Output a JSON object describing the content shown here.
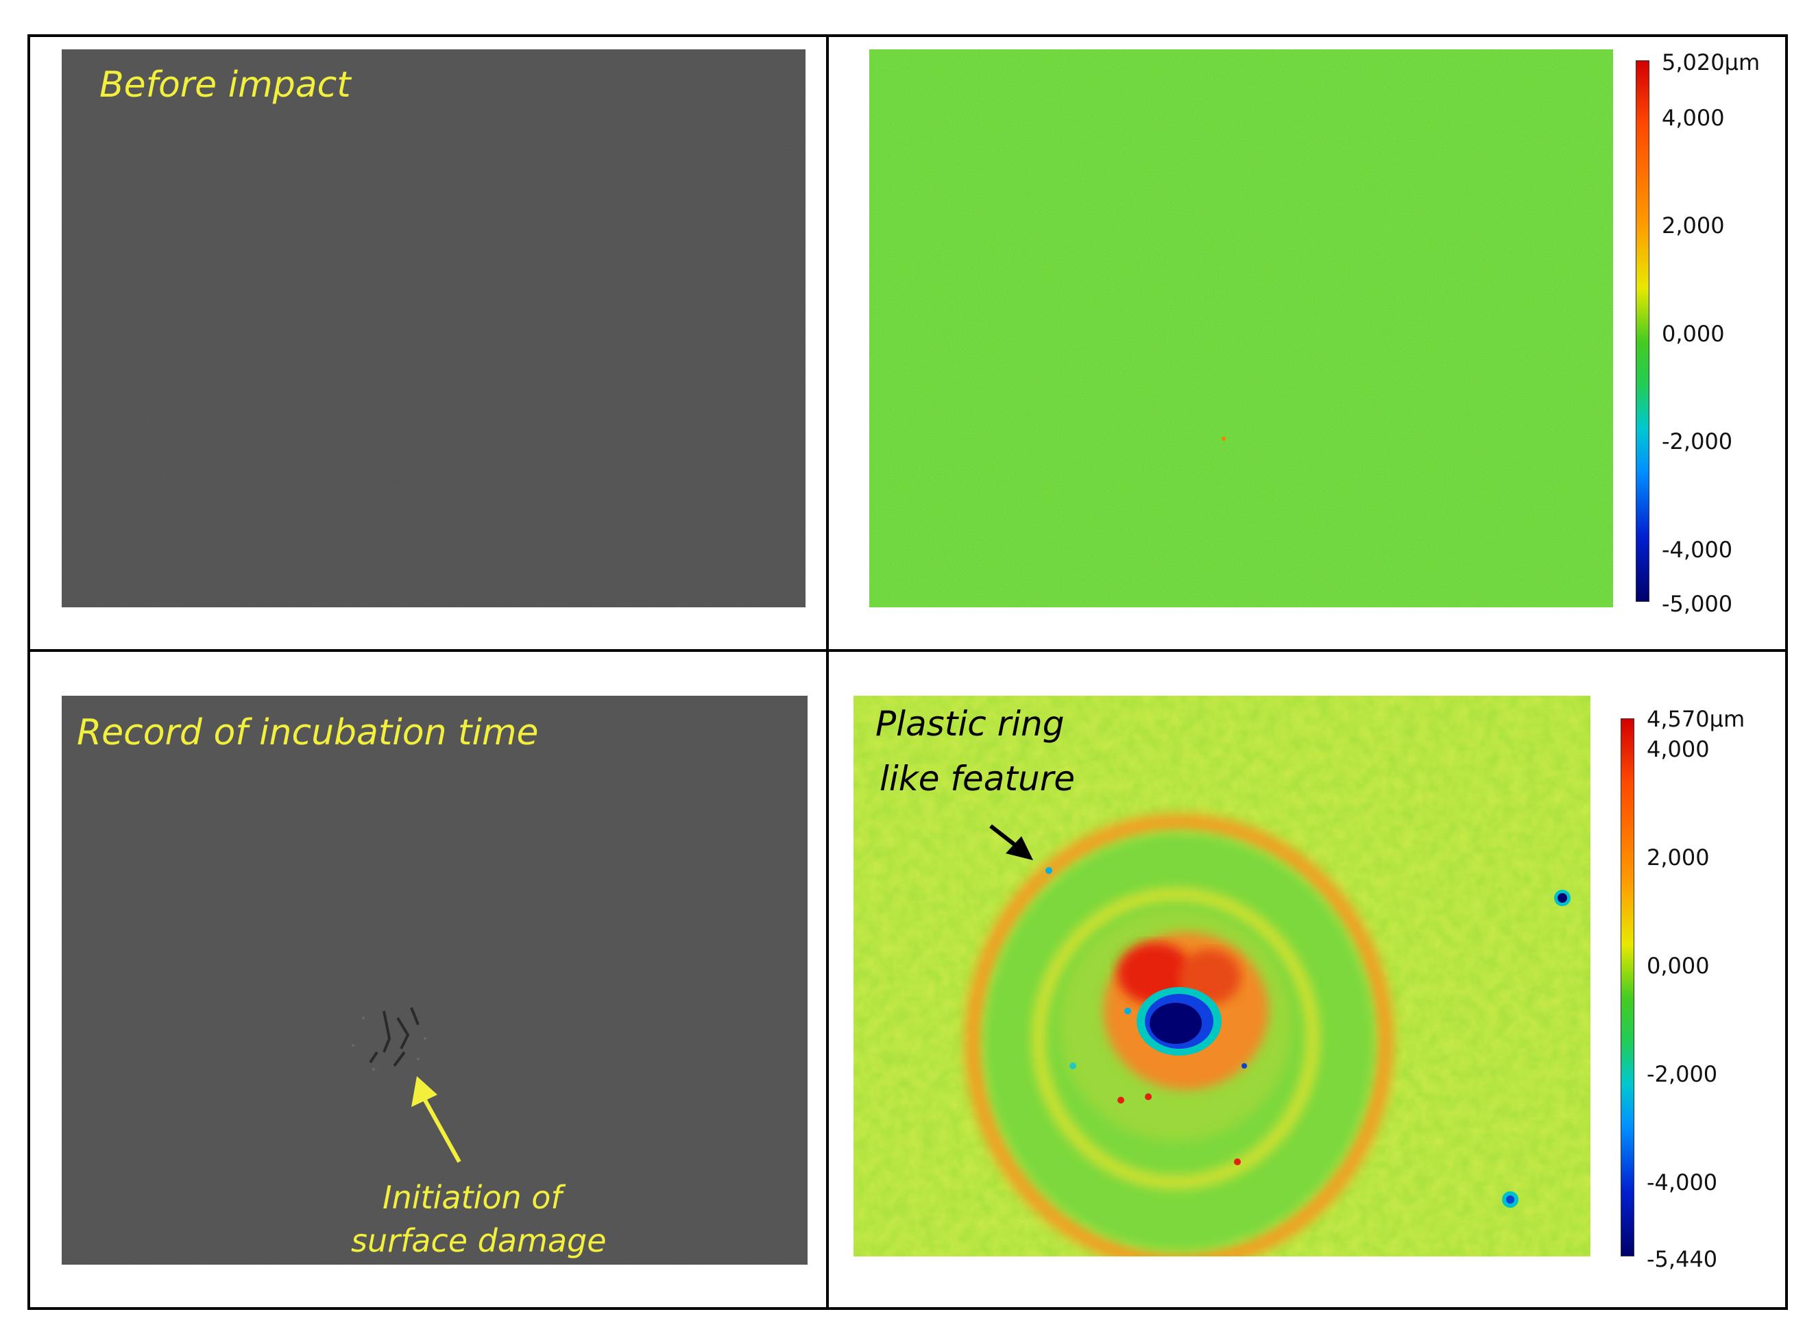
{
  "panels": {
    "top_left": {
      "label": "Before impact"
    },
    "bottom_left": {
      "label": "Record of incubation time",
      "annotation_line1": "Initiation of",
      "annotation_line2": "surface damage",
      "arrow_color": "#f3f03d"
    },
    "top_right": {
      "colorbar_ticks": [
        "5,020µm",
        "4,000",
        "2,000",
        "0,000",
        "-2,000",
        "-4,000",
        "-5,000"
      ]
    },
    "bottom_right": {
      "annotation_line1": "Plastic ring",
      "annotation_line2": "like feature",
      "arrow_color": "#000000",
      "colorbar_ticks": [
        "4,570µm",
        "4,000",
        "2,000",
        "0,000",
        "-2,000",
        "-4,000",
        "-5,440"
      ]
    }
  },
  "colors": {
    "photo_gray": "#4f504f",
    "map_green": "#5ad23a",
    "label_yellow": "#f3f03d"
  }
}
